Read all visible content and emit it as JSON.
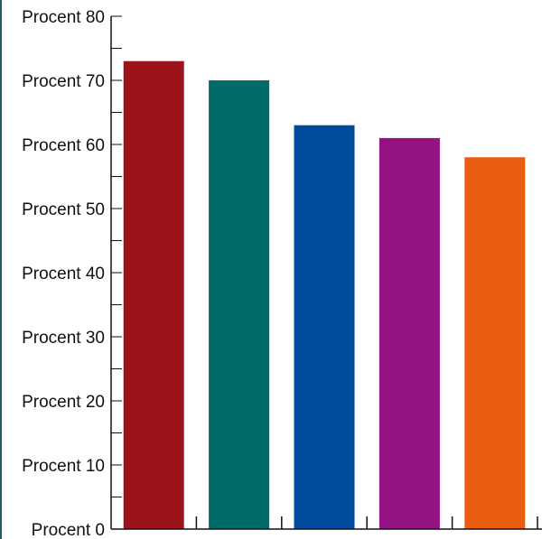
{
  "chart_data": {
    "type": "bar",
    "title": "",
    "xlabel": "",
    "ylabel": "",
    "ylim": [
      0,
      80
    ],
    "y_major_step": 10,
    "y_minor_step": 5,
    "y_tick_labels": [
      "Procent 0",
      "Procent 10",
      "Procent 20",
      "Procent 30",
      "Procent 40",
      "Procent 50",
      "Procent 60",
      "Procent 70",
      "Procent 80"
    ],
    "categories": [
      "",
      "",
      "",
      "",
      ""
    ],
    "values": [
      73,
      70,
      63,
      61,
      58
    ],
    "colors": [
      "#9b141c",
      "#006b68",
      "#004b9b",
      "#951283",
      "#e85d0f"
    ],
    "grid": false,
    "legend": "none"
  }
}
